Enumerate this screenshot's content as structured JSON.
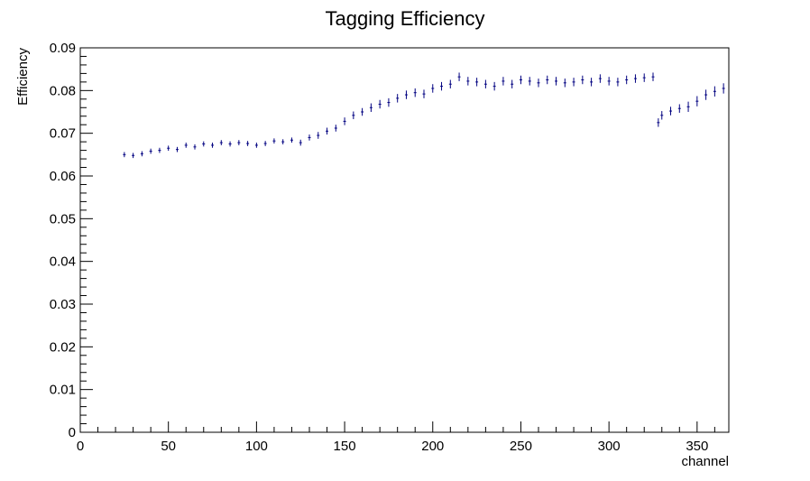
{
  "chart_data": {
    "type": "scatter",
    "title": "Tagging Efficiency",
    "xlabel": "channel",
    "ylabel": "Efficiency",
    "xlim": [
      0,
      368
    ],
    "ylim": [
      0,
      0.09
    ],
    "x_ticks": [
      0,
      50,
      100,
      150,
      200,
      250,
      300,
      350
    ],
    "y_ticks": [
      0,
      0.01,
      0.02,
      0.03,
      0.04,
      0.05,
      0.06,
      0.07,
      0.08,
      0.09
    ],
    "x_tick_labels": [
      "0",
      "50",
      "100",
      "150",
      "200",
      "250",
      "300",
      "350"
    ],
    "y_tick_labels": [
      "0",
      "0.01",
      "0.02",
      "0.03",
      "0.04",
      "0.05",
      "0.06",
      "0.07",
      "0.08",
      "0.09"
    ],
    "marker_color": "#000080",
    "grid": false,
    "legend": "none",
    "series": [
      {
        "x": [
          25,
          30,
          35,
          40,
          45,
          50,
          55,
          60,
          65,
          70,
          75,
          80,
          85,
          90,
          95,
          100,
          105,
          110,
          115,
          120,
          125,
          130,
          135,
          140,
          145,
          150,
          155,
          160,
          165,
          170,
          175,
          180,
          185,
          190,
          195,
          200,
          205,
          210,
          215,
          220,
          225,
          230,
          235,
          240,
          245,
          250,
          255,
          260,
          265,
          270,
          275,
          280,
          285,
          290,
          295,
          300,
          305,
          310,
          315,
          320,
          325,
          328,
          330,
          335,
          340,
          345,
          350,
          355,
          360,
          365
        ],
        "y": [
          0.065,
          0.0648,
          0.0652,
          0.0658,
          0.066,
          0.0665,
          0.0662,
          0.0672,
          0.0668,
          0.0675,
          0.0672,
          0.0678,
          0.0675,
          0.0678,
          0.0676,
          0.0672,
          0.0676,
          0.0682,
          0.068,
          0.0684,
          0.0678,
          0.069,
          0.0695,
          0.0705,
          0.0712,
          0.0728,
          0.0742,
          0.075,
          0.076,
          0.0768,
          0.0772,
          0.0782,
          0.079,
          0.0795,
          0.0792,
          0.0805,
          0.081,
          0.0815,
          0.0832,
          0.0822,
          0.082,
          0.0815,
          0.081,
          0.0822,
          0.0815,
          0.0825,
          0.0822,
          0.0818,
          0.0825,
          0.0822,
          0.0818,
          0.082,
          0.0825,
          0.082,
          0.0828,
          0.0822,
          0.082,
          0.0825,
          0.0828,
          0.083,
          0.0832,
          0.0725,
          0.0742,
          0.0752,
          0.0758,
          0.0762,
          0.0775,
          0.079,
          0.0798,
          0.0805
        ],
        "yerr": [
          0.0006,
          0.0006,
          0.0006,
          0.0006,
          0.0006,
          0.0006,
          0.0006,
          0.0006,
          0.0006,
          0.0006,
          0.0006,
          0.0006,
          0.0006,
          0.0006,
          0.0006,
          0.0006,
          0.0006,
          0.0006,
          0.0006,
          0.0006,
          0.0007,
          0.0007,
          0.0008,
          0.0008,
          0.0008,
          0.0009,
          0.0009,
          0.0009,
          0.001,
          0.001,
          0.001,
          0.001,
          0.001,
          0.001,
          0.001,
          0.001,
          0.001,
          0.001,
          0.001,
          0.001,
          0.001,
          0.001,
          0.001,
          0.001,
          0.001,
          0.001,
          0.001,
          0.001,
          0.001,
          0.001,
          0.001,
          0.001,
          0.001,
          0.001,
          0.001,
          0.001,
          0.001,
          0.001,
          0.001,
          0.001,
          0.001,
          0.001,
          0.001,
          0.001,
          0.001,
          0.0012,
          0.0012,
          0.0012,
          0.0012,
          0.0012
        ]
      }
    ]
  }
}
